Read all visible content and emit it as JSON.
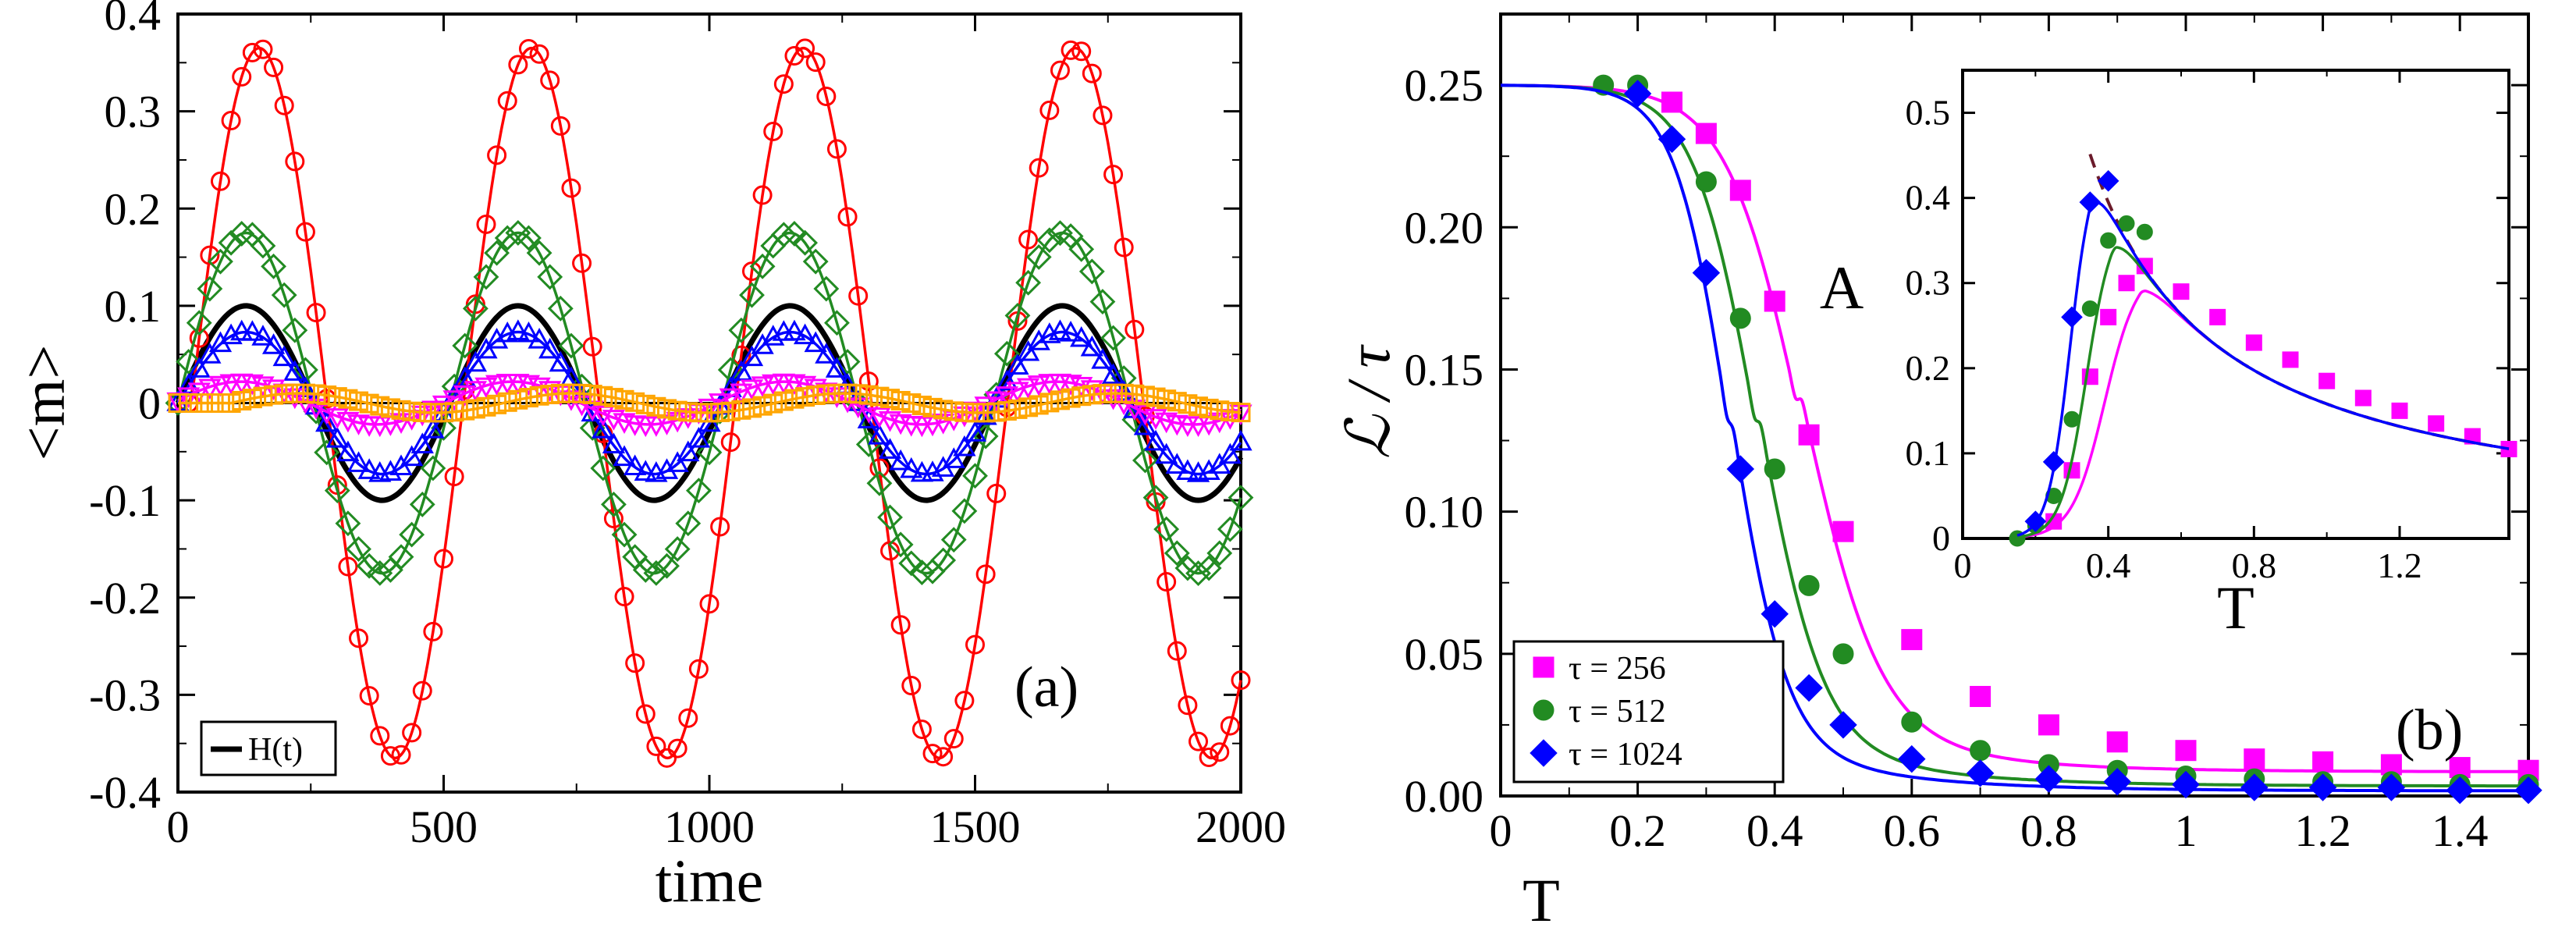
{
  "chart_data": [
    {
      "type": "line",
      "panel_label": "(a)",
      "xlabel": "time",
      "ylabel": "<m>",
      "xlim": [
        0,
        2000
      ],
      "ylim": [
        -0.4,
        0.4
      ],
      "xticks": [
        "0",
        "500",
        "1000",
        "1500",
        "2000"
      ],
      "yticks": [
        "-0.4",
        "-0.3",
        "-0.2",
        "-0.1",
        "0",
        "0.1",
        "0.2",
        "0.3",
        "0.4"
      ],
      "grid": false,
      "legend": {
        "position": "bottom-left",
        "entries": [
          "H(t)"
        ]
      },
      "field": {
        "name": "H(t)",
        "amplitude": 0.1,
        "period": 512,
        "color": "#000000"
      },
      "series": [
        {
          "amplitude": 0.365,
          "period": 512,
          "phase_lag": 25,
          "color": "#ff0000",
          "marker": "circle"
        },
        {
          "amplitude": 0.175,
          "period": 512,
          "phase_lag": 0,
          "color": "#228b22",
          "marker": "diamond"
        },
        {
          "amplitude": 0.073,
          "period": 512,
          "phase_lag": 0,
          "color": "#0000ff",
          "marker": "triangle-up"
        },
        {
          "amplitude": 0.022,
          "period": 512,
          "phase_lag": -10,
          "color": "#ff00ff",
          "marker": "triangle-down"
        },
        {
          "amplitude": 0.01,
          "period": 512,
          "phase_lag": 100,
          "color": "#ffa500",
          "marker": "square"
        }
      ]
    },
    {
      "type": "line",
      "panel_label": "(b)",
      "xlabel": "T",
      "ylabel": "ℒ / τ",
      "xlim": [
        0,
        1.5
      ],
      "ylim": [
        0,
        0.275
      ],
      "xticks": [
        "0",
        "0.2",
        "0.4",
        "0.6",
        "0.8",
        "1",
        "1.2",
        "1.4"
      ],
      "yticks": [
        "0.00",
        "0.05",
        "0.10",
        "0.15",
        "0.20",
        "0.25"
      ],
      "grid": false,
      "legend": {
        "position": "bottom-left",
        "entries": [
          "τ = 256",
          "τ = 512",
          "τ = 1024"
        ]
      },
      "series": [
        {
          "name": "τ = 256",
          "color": "#ff00ff",
          "marker": "square",
          "x": [
            0.25,
            0.3,
            0.35,
            0.4,
            0.45,
            0.5,
            0.6,
            0.7,
            0.8,
            0.9,
            1.0,
            1.1,
            1.2,
            1.3,
            1.4,
            1.5
          ],
          "y": [
            0.244,
            0.233,
            0.213,
            0.174,
            0.127,
            0.093,
            0.055,
            0.035,
            0.025,
            0.019,
            0.016,
            0.013,
            0.012,
            0.011,
            0.01,
            0.009
          ]
        },
        {
          "name": "τ = 512",
          "color": "#228b22",
          "marker": "circle",
          "x": [
            0.15,
            0.2,
            0.3,
            0.35,
            0.4,
            0.45,
            0.5,
            0.6,
            0.7,
            0.8,
            0.9,
            1.0,
            1.1,
            1.2,
            1.3,
            1.4,
            1.5
          ],
          "y": [
            0.25,
            0.25,
            0.216,
            0.168,
            0.115,
            0.074,
            0.05,
            0.026,
            0.016,
            0.011,
            0.009,
            0.007,
            0.006,
            0.005,
            0.005,
            0.004,
            0.004
          ]
        },
        {
          "name": "τ = 1024",
          "color": "#0000ff",
          "marker": "diamond",
          "x": [
            0.2,
            0.25,
            0.3,
            0.35,
            0.4,
            0.45,
            0.5,
            0.6,
            0.7,
            0.8,
            0.9,
            1.0,
            1.1,
            1.2,
            1.3,
            1.4,
            1.5
          ],
          "y": [
            0.247,
            0.231,
            0.184,
            0.115,
            0.064,
            0.038,
            0.025,
            0.013,
            0.008,
            0.006,
            0.005,
            0.004,
            0.003,
            0.003,
            0.003,
            0.002,
            0.002
          ]
        }
      ]
    },
    {
      "type": "line",
      "inset": true,
      "xlabel": "T",
      "ylabel": "A",
      "xlim": [
        0,
        1.5
      ],
      "ylim": [
        0,
        0.55
      ],
      "xticks": [
        "0",
        "0.4",
        "0.8",
        "1.2"
      ],
      "yticks": [
        "0",
        "0.1",
        "0.2",
        "0.3",
        "0.4",
        "0.5"
      ],
      "grid": false,
      "reference_curve": {
        "style": "dashed",
        "color": "#6b1b2b"
      },
      "series": [
        {
          "color": "#ff00ff",
          "marker": "square",
          "x": [
            0.25,
            0.3,
            0.35,
            0.4,
            0.45,
            0.5,
            0.6,
            0.7,
            0.8,
            0.9,
            1.0,
            1.1,
            1.2,
            1.3,
            1.4,
            1.5
          ],
          "y": [
            0.02,
            0.08,
            0.19,
            0.26,
            0.3,
            0.32,
            0.29,
            0.26,
            0.23,
            0.21,
            0.185,
            0.165,
            0.15,
            0.135,
            0.12,
            0.105
          ]
        },
        {
          "color": "#228b22",
          "marker": "circle",
          "x": [
            0.15,
            0.2,
            0.25,
            0.3,
            0.35,
            0.4,
            0.45,
            0.5
          ],
          "y": [
            0.0,
            0.015,
            0.05,
            0.14,
            0.27,
            0.35,
            0.37,
            0.36
          ]
        },
        {
          "color": "#0000ff",
          "marker": "diamond",
          "x": [
            0.2,
            0.25,
            0.3,
            0.35,
            0.4
          ],
          "y": [
            0.02,
            0.09,
            0.26,
            0.395,
            0.42
          ]
        }
      ]
    }
  ]
}
